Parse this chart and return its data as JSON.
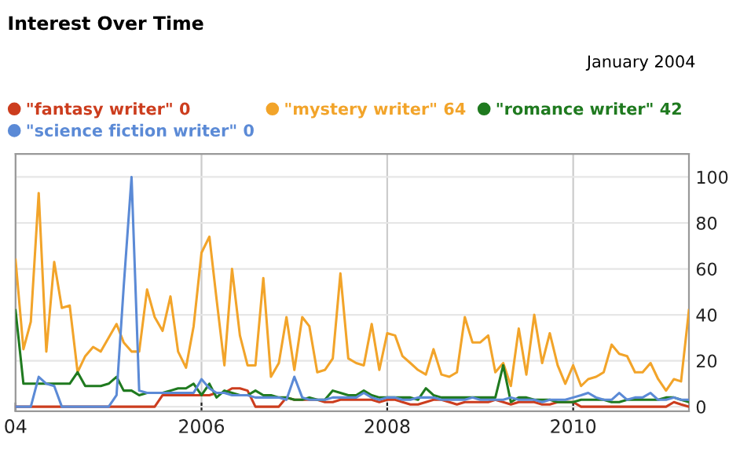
{
  "chart_data": {
    "type": "line",
    "title": "Interest Over Time",
    "annotations": [
      "January 2004"
    ],
    "xlim": [
      "2004-01",
      "2011-04"
    ],
    "xticks": [
      {
        "value": "2004-01",
        "label": "04"
      },
      {
        "value": "2006-01",
        "label": "2006"
      },
      {
        "value": "2008-01",
        "label": "2008"
      },
      {
        "value": "2010-01",
        "label": "2010"
      }
    ],
    "ylim": [
      -2,
      110
    ],
    "yticks": [
      0,
      20,
      40,
      60,
      80,
      100
    ],
    "grid": true,
    "legend": "top right",
    "marker": "none",
    "line_style": "solid",
    "x": [
      "2004-01",
      "2004-02",
      "2004-03",
      "2004-04",
      "2004-05",
      "2004-06",
      "2004-07",
      "2004-08",
      "2004-09",
      "2004-10",
      "2004-11",
      "2004-12",
      "2005-01",
      "2005-02",
      "2005-03",
      "2005-04",
      "2005-05",
      "2005-06",
      "2005-07",
      "2005-08",
      "2005-09",
      "2005-10",
      "2005-11",
      "2005-12",
      "2006-01",
      "2006-02",
      "2006-03",
      "2006-04",
      "2006-05",
      "2006-06",
      "2006-07",
      "2006-08",
      "2006-09",
      "2006-10",
      "2006-11",
      "2006-12",
      "2007-01",
      "2007-02",
      "2007-03",
      "2007-04",
      "2007-05",
      "2007-06",
      "2007-07",
      "2007-08",
      "2007-09",
      "2007-10",
      "2007-11",
      "2007-12",
      "2008-01",
      "2008-02",
      "2008-03",
      "2008-04",
      "2008-05",
      "2008-06",
      "2008-07",
      "2008-08",
      "2008-09",
      "2008-10",
      "2008-11",
      "2008-12",
      "2009-01",
      "2009-02",
      "2009-03",
      "2009-04",
      "2009-05",
      "2009-06",
      "2009-07",
      "2009-08",
      "2009-09",
      "2009-10",
      "2009-11",
      "2009-12",
      "2010-01",
      "2010-02",
      "2010-03",
      "2010-04",
      "2010-05",
      "2010-06",
      "2010-07",
      "2010-08",
      "2010-09",
      "2010-10",
      "2010-11",
      "2010-12",
      "2011-01",
      "2011-02",
      "2011-03",
      "2011-04"
    ],
    "series": [
      {
        "name": "\"fantasy writer\" 0",
        "color": "#cc3d1e",
        "values": [
          0,
          0,
          0,
          0,
          0,
          0,
          0,
          0,
          0,
          0,
          0,
          0,
          0,
          0,
          0,
          0,
          0,
          0,
          0,
          5,
          5,
          5,
          5,
          5,
          5,
          5,
          6,
          6,
          8,
          8,
          7,
          0,
          0,
          0,
          0,
          4,
          3,
          3,
          3,
          3,
          2,
          2,
          3,
          3,
          3,
          3,
          3,
          2,
          3,
          3,
          2,
          1,
          1,
          2,
          3,
          3,
          2,
          1,
          2,
          2,
          2,
          2,
          3,
          2,
          1,
          2,
          2,
          2,
          1,
          1,
          2,
          2,
          2,
          0,
          0,
          0,
          0,
          0,
          0,
          0,
          0,
          0,
          0,
          0,
          0,
          2,
          1,
          0
        ]
      },
      {
        "name": "\"mystery writer\" 64",
        "color": "#f2a42a",
        "values": [
          64,
          25,
          37,
          93,
          24,
          63,
          43,
          44,
          15,
          22,
          26,
          24,
          30,
          36,
          28,
          24,
          24,
          51,
          39,
          33,
          48,
          24,
          17,
          35,
          67,
          74,
          47,
          18,
          60,
          31,
          18,
          18,
          56,
          13,
          19,
          39,
          16,
          39,
          35,
          15,
          16,
          21,
          58,
          21,
          19,
          18,
          36,
          16,
          32,
          31,
          22,
          19,
          16,
          14,
          25,
          14,
          13,
          15,
          39,
          28,
          28,
          31,
          15,
          19,
          9,
          34,
          14,
          40,
          19,
          32,
          18,
          10,
          18,
          9,
          12,
          13,
          15,
          27,
          23,
          22,
          15,
          15,
          19,
          12,
          7,
          12,
          11,
          42
        ]
      },
      {
        "name": "\"romance writer\" 42",
        "color": "#1f7a1f",
        "values": [
          42,
          10,
          10,
          10,
          10,
          10,
          10,
          10,
          15,
          9,
          9,
          9,
          10,
          13,
          7,
          7,
          5,
          6,
          6,
          6,
          7,
          8,
          8,
          10,
          5,
          10,
          4,
          7,
          6,
          5,
          5,
          7,
          5,
          5,
          4,
          4,
          3,
          3,
          4,
          3,
          3,
          7,
          6,
          5,
          5,
          7,
          5,
          4,
          4,
          4,
          4,
          4,
          3,
          8,
          5,
          4,
          4,
          4,
          4,
          4,
          4,
          4,
          4,
          18,
          2,
          4,
          4,
          3,
          3,
          3,
          2,
          2,
          2,
          3,
          3,
          3,
          3,
          2,
          2,
          3,
          3,
          3,
          3,
          3,
          4,
          4,
          3,
          2
        ]
      },
      {
        "name": "\"science fiction writer\" 0",
        "color": "#5b8ad6",
        "values": [
          0,
          0,
          0,
          13,
          10,
          9,
          0,
          0,
          0,
          0,
          0,
          0,
          0,
          5,
          52,
          100,
          7,
          6,
          6,
          6,
          6,
          6,
          6,
          6,
          12,
          8,
          6,
          6,
          5,
          5,
          5,
          4,
          4,
          4,
          4,
          3,
          13,
          4,
          3,
          3,
          3,
          4,
          4,
          4,
          4,
          6,
          4,
          3,
          4,
          4,
          3,
          3,
          4,
          4,
          4,
          3,
          3,
          3,
          3,
          4,
          3,
          3,
          3,
          3,
          4,
          3,
          3,
          3,
          2,
          3,
          3,
          3,
          4,
          5,
          6,
          4,
          3,
          3,
          6,
          3,
          4,
          4,
          6,
          3,
          3,
          4,
          3,
          3
        ]
      }
    ]
  }
}
